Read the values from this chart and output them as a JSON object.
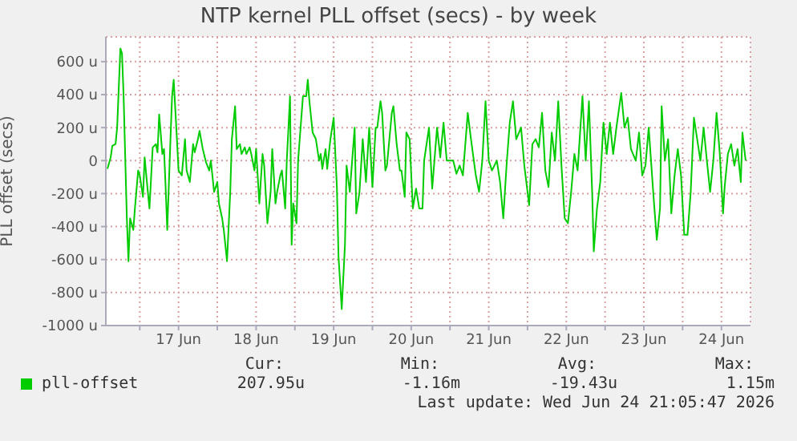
{
  "chart_data": {
    "type": "line",
    "title": "NTP kernel PLL offset (secs) - by week",
    "ylabel": "PLL offset (secs)",
    "xlim": [
      "2026-06-16T13:30",
      "2026-06-24T21:00"
    ],
    "xticks": [
      {
        "value": "2026-06-17T00:00",
        "label": null
      },
      {
        "value": "2026-06-17T12:00",
        "label": "17 Jun"
      },
      {
        "value": "2026-06-18T00:00",
        "label": null
      },
      {
        "value": "2026-06-18T12:00",
        "label": "18 Jun"
      },
      {
        "value": "2026-06-19T00:00",
        "label": null
      },
      {
        "value": "2026-06-19T12:00",
        "label": "19 Jun"
      },
      {
        "value": "2026-06-20T00:00",
        "label": null
      },
      {
        "value": "2026-06-20T12:00",
        "label": "20 Jun"
      },
      {
        "value": "2026-06-21T00:00",
        "label": null
      },
      {
        "value": "2026-06-21T12:00",
        "label": "21 Jun"
      },
      {
        "value": "2026-06-22T00:00",
        "label": null
      },
      {
        "value": "2026-06-22T12:00",
        "label": "22 Jun"
      },
      {
        "value": "2026-06-23T00:00",
        "label": null
      },
      {
        "value": "2026-06-23T12:00",
        "label": "23 Jun"
      },
      {
        "value": "2026-06-24T00:00",
        "label": null
      },
      {
        "value": "2026-06-24T12:00",
        "label": "24 Jun"
      }
    ],
    "ylim": [
      -1000,
      750
    ],
    "yticks": [
      {
        "value": -1000,
        "label": "-1000 u"
      },
      {
        "value": -800,
        "label": "-800 u"
      },
      {
        "value": -600,
        "label": "-600 u"
      },
      {
        "value": -400,
        "label": "-400 u"
      },
      {
        "value": -200,
        "label": "-200 u"
      },
      0,
      {
        "value": 200,
        "label": "200 u"
      },
      {
        "value": 400,
        "label": "400 u"
      },
      {
        "value": 600,
        "label": "600 u"
      }
    ],
    "grid": true,
    "legend": "bottom",
    "marker": "none",
    "line_style": "solid",
    "series": [
      {
        "name": "pll-offset",
        "color": "#00cc00",
        "x": [
          "2026-06-16T14:00",
          "2026-06-16T15:00",
          "2026-06-16T15:30",
          "2026-06-16T16:30",
          "2026-06-16T17:00",
          "2026-06-16T18:00",
          "2026-06-16T18:30",
          "2026-06-16T19:00",
          "2026-06-16T20:00",
          "2026-06-16T20:30",
          "2026-06-16T21:00",
          "2026-06-16T22:00",
          "2026-06-16T22:30",
          "2026-06-16T23:30",
          "2026-06-17T00:00",
          "2026-06-17T01:00",
          "2026-06-17T01:30",
          "2026-06-17T02:30",
          "2026-06-17T03:00",
          "2026-06-17T04:00",
          "2026-06-17T05:00",
          "2026-06-17T05:30",
          "2026-06-17T06:00",
          "2026-06-17T07:00",
          "2026-06-17T07:30",
          "2026-06-17T08:00",
          "2026-06-17T08:30",
          "2026-06-17T09:30",
          "2026-06-17T10:00",
          "2026-06-17T10:30",
          "2026-06-17T11:30",
          "2026-06-17T12:00",
          "2026-06-17T13:00",
          "2026-06-17T14:00",
          "2026-06-17T14:30",
          "2026-06-17T15:30",
          "2026-06-17T16:30",
          "2026-06-17T17:00",
          "2026-06-17T18:00",
          "2026-06-17T18:30",
          "2026-06-17T19:30",
          "2026-06-17T20:30",
          "2026-06-17T21:30",
          "2026-06-17T22:00",
          "2026-06-17T23:00",
          "2026-06-18T00:00",
          "2026-06-18T00:30",
          "2026-06-18T01:30",
          "2026-06-18T02:00",
          "2026-06-18T03:00",
          "2026-06-18T04:00",
          "2026-06-18T04:30",
          "2026-06-18T05:30",
          "2026-06-18T06:00",
          "2026-06-18T07:00",
          "2026-06-18T07:30",
          "2026-06-18T08:30",
          "2026-06-18T09:00",
          "2026-06-18T10:00",
          "2026-06-18T10:30",
          "2026-06-18T11:30",
          "2026-06-18T12:00",
          "2026-06-18T13:00",
          "2026-06-18T14:00",
          "2026-06-18T14:30",
          "2026-06-18T15:30",
          "2026-06-18T16:30",
          "2026-06-18T17:00",
          "2026-06-18T18:00",
          "2026-06-18T18:30",
          "2026-06-18T19:30",
          "2026-06-18T20:00",
          "2026-06-18T21:00",
          "2026-06-18T21:30",
          "2026-06-18T22:30",
          "2026-06-18T23:00",
          "2026-06-18T23:30",
          "2026-06-19T00:30",
          "2026-06-19T01:00",
          "2026-06-19T01:30",
          "2026-06-19T02:30",
          "2026-06-19T03:30",
          "2026-06-19T04:00",
          "2026-06-19T04:30",
          "2026-06-19T05:30",
          "2026-06-19T06:30",
          "2026-06-19T07:30",
          "2026-06-19T08:00",
          "2026-06-19T08:30",
          "2026-06-19T09:30",
          "2026-06-19T10:00",
          "2026-06-19T11:00",
          "2026-06-19T12:00",
          "2026-06-19T13:00",
          "2026-06-19T13:30",
          "2026-06-19T14:30",
          "2026-06-19T15:30",
          "2026-06-19T16:00",
          "2026-06-19T17:00",
          "2026-06-19T18:00",
          "2026-06-19T18:30",
          "2026-06-19T19:00",
          "2026-06-19T20:00",
          "2026-06-19T21:00",
          "2026-06-19T22:00",
          "2026-06-19T23:00",
          "2026-06-20T00:00",
          "2026-06-20T01:00",
          "2026-06-20T01:30",
          "2026-06-20T02:30",
          "2026-06-20T03:00",
          "2026-06-20T04:00",
          "2026-06-20T04:30",
          "2026-06-20T06:00",
          "2026-06-20T06:30",
          "2026-06-20T07:30",
          "2026-06-20T08:30",
          "2026-06-20T09:00",
          "2026-06-20T10:00",
          "2026-06-20T10:30",
          "2026-06-20T11:30",
          "2026-06-20T12:30",
          "2026-06-20T13:30",
          "2026-06-20T14:30",
          "2026-06-20T15:30",
          "2026-06-20T16:00",
          "2026-06-20T17:30",
          "2026-06-20T18:30",
          "2026-06-20T20:00",
          "2026-06-20T21:00",
          "2026-06-20T22:00",
          "2026-06-20T23:00",
          "2026-06-21T01:00",
          "2026-06-21T02:00",
          "2026-06-21T03:00",
          "2026-06-21T04:00",
          "2026-06-21T05:30",
          "2026-06-21T06:30",
          "2026-06-21T08:00",
          "2026-06-21T09:00",
          "2026-06-21T10:00",
          "2026-06-21T11:00",
          "2026-06-21T12:00",
          "2026-06-21T13:00",
          "2026-06-21T14:30",
          "2026-06-21T15:30",
          "2026-06-21T16:30",
          "2026-06-21T17:30",
          "2026-06-21T18:30",
          "2026-06-21T19:30",
          "2026-06-21T20:30",
          "2026-06-21T22:00",
          "2026-06-21T23:00",
          "2026-06-22T00:30",
          "2026-06-22T01:30",
          "2026-06-22T02:30",
          "2026-06-22T03:30",
          "2026-06-22T04:30",
          "2026-06-22T05:30",
          "2026-06-22T06:30",
          "2026-06-22T07:30",
          "2026-06-22T08:30",
          "2026-06-22T09:30",
          "2026-06-22T10:30",
          "2026-06-22T11:30",
          "2026-06-22T12:30",
          "2026-06-22T13:30",
          "2026-06-22T14:30",
          "2026-06-22T15:30",
          "2026-06-22T17:00",
          "2026-06-22T18:00",
          "2026-06-22T19:00",
          "2026-06-22T20:00",
          "2026-06-22T20:30",
          "2026-06-22T21:30",
          "2026-06-22T22:30",
          "2026-06-22T23:30",
          "2026-06-23T00:30",
          "2026-06-23T01:30",
          "2026-06-23T02:30",
          "2026-06-23T03:30",
          "2026-06-23T05:00",
          "2026-06-23T06:00",
          "2026-06-23T07:00",
          "2026-06-23T08:00",
          "2026-06-23T09:30",
          "2026-06-23T10:30",
          "2026-06-23T11:30",
          "2026-06-23T12:30",
          "2026-06-23T13:30",
          "2026-06-23T15:00",
          "2026-06-23T16:00",
          "2026-06-23T17:00",
          "2026-06-23T17:30",
          "2026-06-23T18:30",
          "2026-06-23T19:30",
          "2026-06-23T20:30",
          "2026-06-23T21:30",
          "2026-06-23T22:30",
          "2026-06-23T23:30",
          "2026-06-24T00:30",
          "2026-06-24T01:30",
          "2026-06-24T02:30",
          "2026-06-24T03:30",
          "2026-06-24T04:30",
          "2026-06-24T05:30",
          "2026-06-24T06:30",
          "2026-06-24T07:30",
          "2026-06-24T08:30",
          "2026-06-24T09:30",
          "2026-06-24T10:30",
          "2026-06-24T11:30",
          "2026-06-24T12:30",
          "2026-06-24T13:00",
          "2026-06-24T14:00",
          "2026-06-24T15:00",
          "2026-06-24T16:00",
          "2026-06-24T17:00",
          "2026-06-24T18:00",
          "2026-06-24T18:30",
          "2026-06-24T19:30"
        ],
        "values": [
          -50,
          20,
          90,
          100,
          200,
          680,
          650,
          390,
          -350,
          -610,
          -350,
          -420,
          -290,
          -60,
          -90,
          -220,
          20,
          -190,
          -290,
          80,
          100,
          50,
          280,
          40,
          70,
          -160,
          -420,
          130,
          390,
          490,
          130,
          -60,
          -90,
          130,
          -60,
          -130,
          100,
          50,
          130,
          180,
          70,
          -10,
          -60,
          0,
          -190,
          -130,
          -260,
          -350,
          -420,
          -610,
          -190,
          130,
          330,
          70,
          100,
          40,
          80,
          40,
          80,
          40,
          -60,
          70,
          -260,
          40,
          -30,
          -380,
          -190,
          70,
          -260,
          -190,
          -90,
          -60,
          -290,
          0,
          390,
          -510,
          -260,
          -380,
          0,
          130,
          390,
          390,
          490,
          360,
          170,
          130,
          0,
          40,
          -50,
          70,
          -50,
          130,
          260,
          -160,
          -580,
          -900,
          -510,
          -30,
          -190,
          70,
          200,
          -320,
          -190,
          130,
          -130,
          200,
          -160,
          200,
          200,
          360,
          290,
          -60,
          -30,
          290,
          330,
          100,
          -60,
          -60,
          -220,
          170,
          130,
          -290,
          -170,
          -290,
          -290,
          0,
          200,
          -170,
          200,
          20,
          230,
          0,
          0,
          -80,
          -30,
          -90,
          290,
          130,
          -90,
          -190,
          0,
          360,
          0,
          -60,
          0,
          -130,
          -350,
          -30,
          230,
          360,
          130,
          200,
          -30,
          -270,
          100,
          130,
          80,
          290,
          -60,
          -160,
          170,
          0,
          360,
          -30,
          -350,
          -380,
          -190,
          40,
          -60,
          390,
          0,
          360,
          -190,
          -550,
          -290,
          -130,
          230,
          40,
          230,
          40,
          200,
          410,
          200,
          260,
          70,
          0,
          170,
          -90,
          -30,
          200,
          -220,
          -480,
          -290,
          330,
          0,
          130,
          -320,
          -90,
          70,
          -90,
          -450,
          -450,
          -190,
          260,
          130,
          0,
          200,
          0,
          -190,
          0,
          290,
          40,
          -320,
          -160,
          40,
          100,
          -30,
          70,
          -130,
          170,
          0
        ]
      }
    ],
    "annotations": [
      "Cur:",
      "Min:",
      "Avg:",
      "Max:",
      "207.95u",
      "-1.16m",
      "-19.43u",
      "1.15m",
      "Last update: Wed Jun 24 21:05:47 2026"
    ]
  }
}
